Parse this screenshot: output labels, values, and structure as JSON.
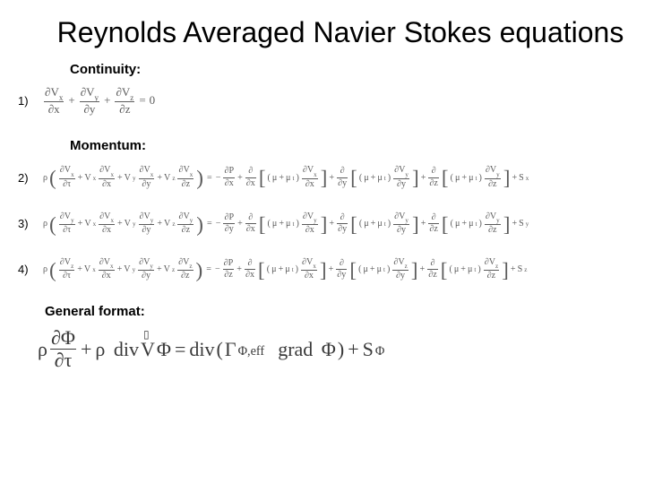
{
  "title": "Reynolds Averaged Navier Stokes equations",
  "labels": {
    "continuity": "Continuity:",
    "momentum": "Momentum:",
    "general": "General format:"
  },
  "numbers": {
    "n1": "1)",
    "n2": "2)",
    "n3": "3)",
    "n4": "4)"
  },
  "sym": {
    "partial": "∂",
    "rho": "ρ",
    "tau": "τ",
    "mu": "μ",
    "mu_t": "μ",
    "Vx": "V",
    "Vy": "V",
    "Vz": "V",
    "x": "x",
    "y": "y",
    "z": "z",
    "t": "t",
    "P": "P",
    "Sx": "S",
    "Sy": "S",
    "Sz": "S",
    "plus": "+",
    "minus": "−",
    "eq": "=",
    "zero": "0",
    "Phi": "Φ",
    "Gamma": "Γ",
    "V": "V",
    "div": "div",
    "grad": "grad",
    "phi_eff": "Φ,eff"
  },
  "colors": {
    "text": "#000000",
    "eq": "#5b5b5b",
    "bg": "#ffffff"
  },
  "fontsize": {
    "title": 32,
    "label": 15,
    "eq_cont": 13,
    "eq_mom": 10.1,
    "eq_gen": 22
  }
}
